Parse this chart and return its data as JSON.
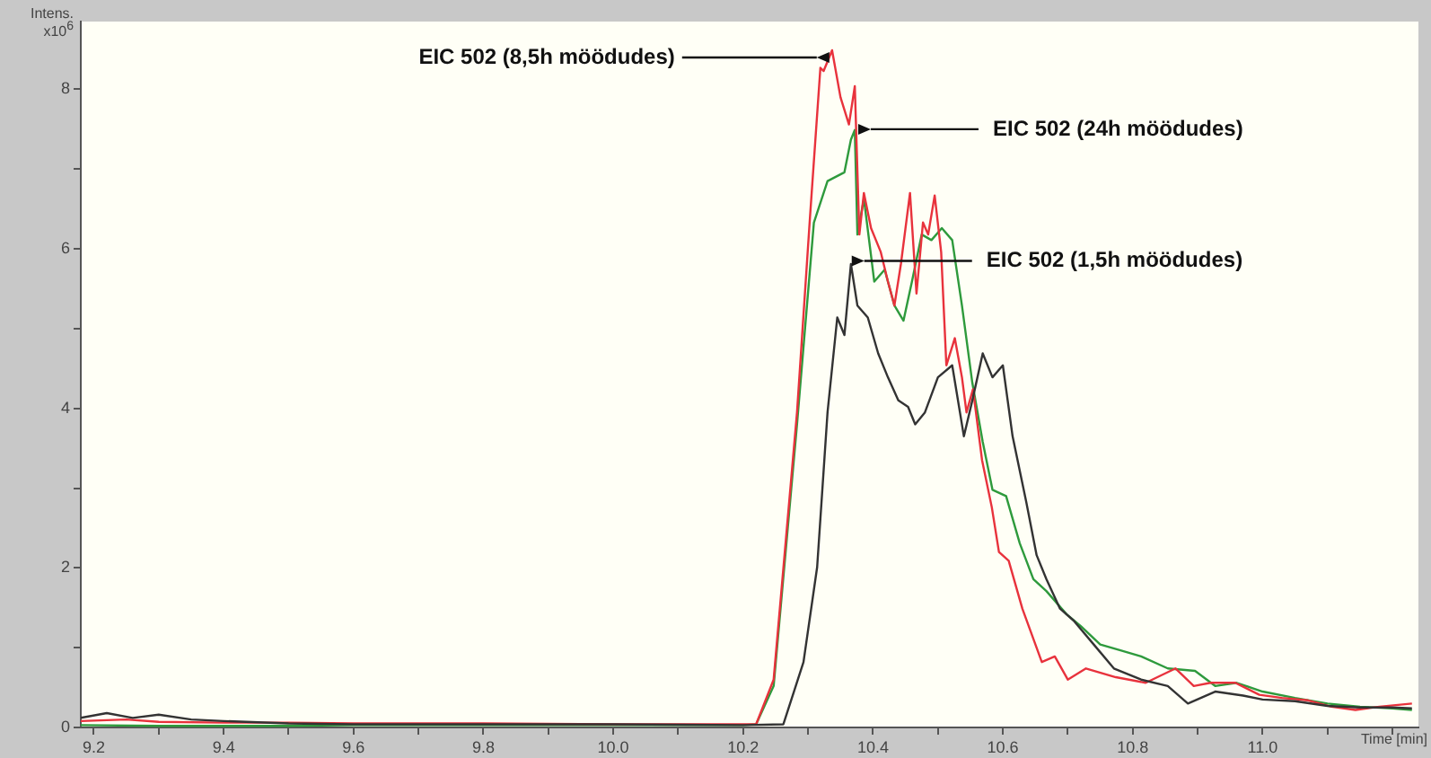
{
  "chart_data": {
    "type": "line",
    "xlabel": "Time [min]",
    "ylabel": "Intens. x10$^{6}$",
    "xlim": [
      9.18,
      11.24
    ],
    "ylim": [
      0,
      8.85
    ],
    "xticks": [
      9.2,
      {
        "value": 9.3,
        "label": null
      },
      9.4,
      {
        "value": 9.5,
        "label": null
      },
      9.6,
      {
        "value": 9.7,
        "label": null
      },
      9.8,
      {
        "value": 9.9,
        "label": null
      },
      {
        "value": 10.0,
        "label": "10.0"
      },
      {
        "value": 10.1,
        "label": null
      },
      10.2,
      {
        "value": 10.3,
        "label": null
      },
      10.4,
      {
        "value": 10.5,
        "label": null
      },
      10.6,
      {
        "value": 10.7,
        "label": null
      },
      10.8,
      {
        "value": 10.9,
        "label": null
      },
      {
        "value": 11.0,
        "label": "11.0"
      },
      {
        "value": 11.1,
        "label": null
      },
      {
        "value": 11.2,
        "label": null
      }
    ],
    "yticks": [
      0,
      {
        "value": 1,
        "label": null
      },
      2,
      {
        "value": 3,
        "label": null
      },
      4,
      {
        "value": 5,
        "label": null
      },
      6,
      {
        "value": 7,
        "label": null
      },
      8
    ],
    "grid": false,
    "legend": false,
    "series": [
      {
        "color": "#333333",
        "x": [
          9.18,
          9.22,
          9.26,
          9.3,
          9.35,
          9.4,
          9.5,
          9.6,
          9.8,
          10.0,
          10.2,
          10.262,
          10.293,
          10.314,
          10.33,
          10.345,
          10.356,
          10.366,
          10.376,
          10.392,
          10.408,
          10.423,
          10.439,
          10.454,
          10.465,
          10.48,
          10.5,
          10.522,
          10.54,
          10.553,
          10.569,
          10.584,
          10.6,
          10.615,
          10.636,
          10.652,
          10.667,
          10.688,
          10.709,
          10.74,
          10.771,
          10.813,
          10.854,
          10.885,
          10.927,
          10.97,
          11.0,
          11.05,
          11.1,
          11.15,
          11.2,
          11.23
        ],
        "values": [
          0.12,
          0.18,
          0.12,
          0.16,
          0.1,
          0.08,
          0.05,
          0.04,
          0.04,
          0.04,
          0.03,
          0.04,
          0.82,
          2.01,
          3.95,
          5.14,
          4.92,
          5.81,
          5.29,
          5.14,
          4.69,
          4.39,
          4.1,
          4.02,
          3.8,
          3.95,
          4.39,
          4.54,
          3.65,
          4.1,
          4.69,
          4.39,
          4.54,
          3.65,
          2.83,
          2.16,
          1.86,
          1.49,
          1.34,
          1.04,
          0.74,
          0.6,
          0.52,
          0.3,
          0.45,
          0.4,
          0.35,
          0.33,
          0.27,
          0.25,
          0.25,
          0.24
        ]
      },
      {
        "color": "#e8323c",
        "x": [
          9.18,
          9.25,
          9.3,
          9.4,
          9.5,
          9.6,
          9.8,
          10.0,
          10.2,
          10.22,
          10.247,
          10.283,
          10.303,
          10.319,
          10.324,
          10.337,
          10.35,
          10.363,
          10.372,
          10.379,
          10.386,
          10.397,
          10.412,
          10.423,
          10.433,
          10.443,
          10.457,
          10.467,
          10.477,
          10.485,
          10.495,
          10.505,
          10.513,
          10.526,
          10.537,
          10.544,
          10.554,
          10.568,
          10.583,
          10.594,
          10.609,
          10.63,
          10.66,
          10.68,
          10.7,
          10.728,
          10.774,
          10.82,
          10.866,
          10.894,
          10.92,
          10.958,
          10.995,
          11.03,
          11.07,
          11.106,
          11.143,
          11.18,
          11.23
        ],
        "values": [
          0.08,
          0.1,
          0.07,
          0.06,
          0.06,
          0.05,
          0.05,
          0.04,
          0.04,
          0.04,
          0.6,
          3.95,
          6.4,
          8.27,
          8.23,
          8.49,
          7.9,
          7.56,
          8.04,
          6.18,
          6.7,
          6.26,
          5.96,
          5.59,
          5.29,
          5.81,
          6.7,
          5.44,
          6.33,
          6.18,
          6.67,
          5.96,
          4.54,
          4.88,
          4.39,
          3.95,
          4.24,
          3.35,
          2.76,
          2.2,
          2.09,
          1.49,
          0.82,
          0.89,
          0.6,
          0.74,
          0.63,
          0.56,
          0.74,
          0.52,
          0.56,
          0.56,
          0.41,
          0.37,
          0.34,
          0.26,
          0.22,
          0.26,
          0.3
        ]
      },
      {
        "color": "#2e9a3c",
        "x": [
          9.18,
          9.3,
          9.5,
          9.6,
          9.8,
          10.0,
          10.2,
          10.22,
          10.247,
          10.283,
          10.309,
          10.33,
          10.356,
          10.366,
          10.372,
          10.376,
          10.386,
          10.402,
          10.418,
          10.433,
          10.447,
          10.46,
          10.475,
          10.49,
          10.506,
          10.522,
          10.537,
          10.553,
          10.569,
          10.584,
          10.605,
          10.626,
          10.647,
          10.667,
          10.698,
          10.72,
          10.75,
          10.78,
          10.813,
          10.854,
          10.896,
          10.927,
          10.96,
          11.0,
          11.05,
          11.1,
          11.15,
          11.2,
          11.23
        ],
        "values": [
          0.03,
          0.02,
          0.02,
          0.03,
          0.03,
          0.03,
          0.03,
          0.04,
          0.52,
          3.8,
          6.33,
          6.85,
          6.96,
          7.37,
          7.49,
          6.18,
          6.63,
          5.59,
          5.74,
          5.29,
          5.1,
          5.59,
          6.18,
          6.11,
          6.26,
          6.11,
          5.29,
          4.32,
          3.58,
          2.98,
          2.9,
          2.31,
          1.86,
          1.71,
          1.42,
          1.27,
          1.04,
          0.97,
          0.89,
          0.74,
          0.71,
          0.52,
          0.56,
          0.45,
          0.37,
          0.3,
          0.26,
          0.24,
          0.22
        ]
      }
    ],
    "annotations": [
      {
        "text": "EIC 502 (8,5h möödudes)",
        "x": 10.33,
        "y": 8.4
      },
      {
        "text": "EIC 502 (24h möödudes)",
        "x": 10.38,
        "y": 7.5
      },
      {
        "text": "EIC 502 (1,5h möödudes)",
        "x": 10.37,
        "y": 5.85
      }
    ]
  }
}
